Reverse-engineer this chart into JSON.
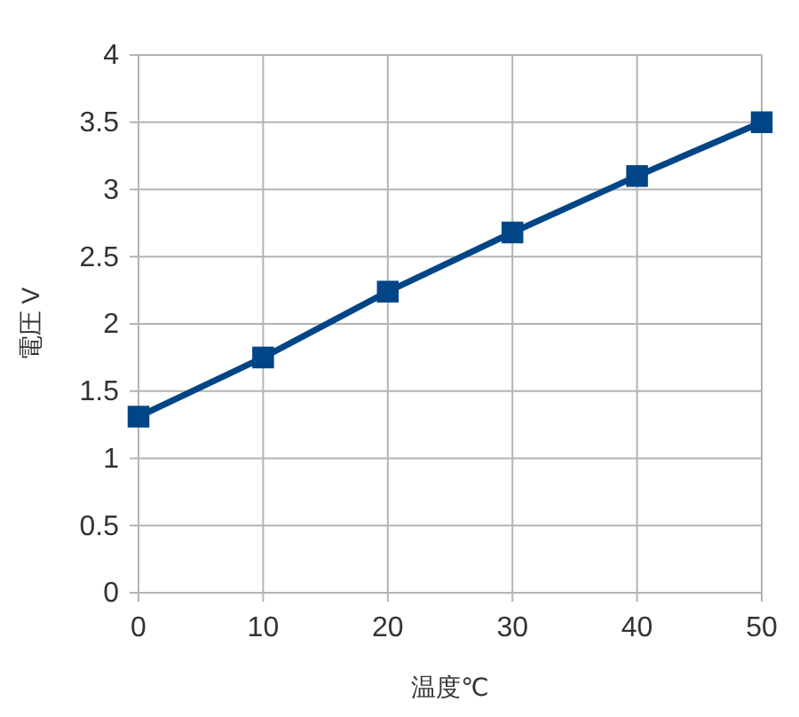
{
  "chart_data": {
    "type": "line",
    "xlabel": "温度℃",
    "ylabel": "電圧 V",
    "x": [
      0,
      10,
      20,
      30,
      40,
      50
    ],
    "series": [
      {
        "color": "#004586",
        "values": [
          1.31,
          1.75,
          2.24,
          2.68,
          3.1,
          3.5
        ]
      }
    ],
    "xlim": [
      0,
      50
    ],
    "xticks": [
      0,
      10,
      20,
      30,
      40,
      50
    ],
    "ylim": [
      0,
      4
    ],
    "yticks": [
      0,
      0.5,
      1,
      1.5,
      2,
      2.5,
      3,
      3.5,
      4
    ],
    "grid": true,
    "marker": "square",
    "line_style": "solid"
  }
}
